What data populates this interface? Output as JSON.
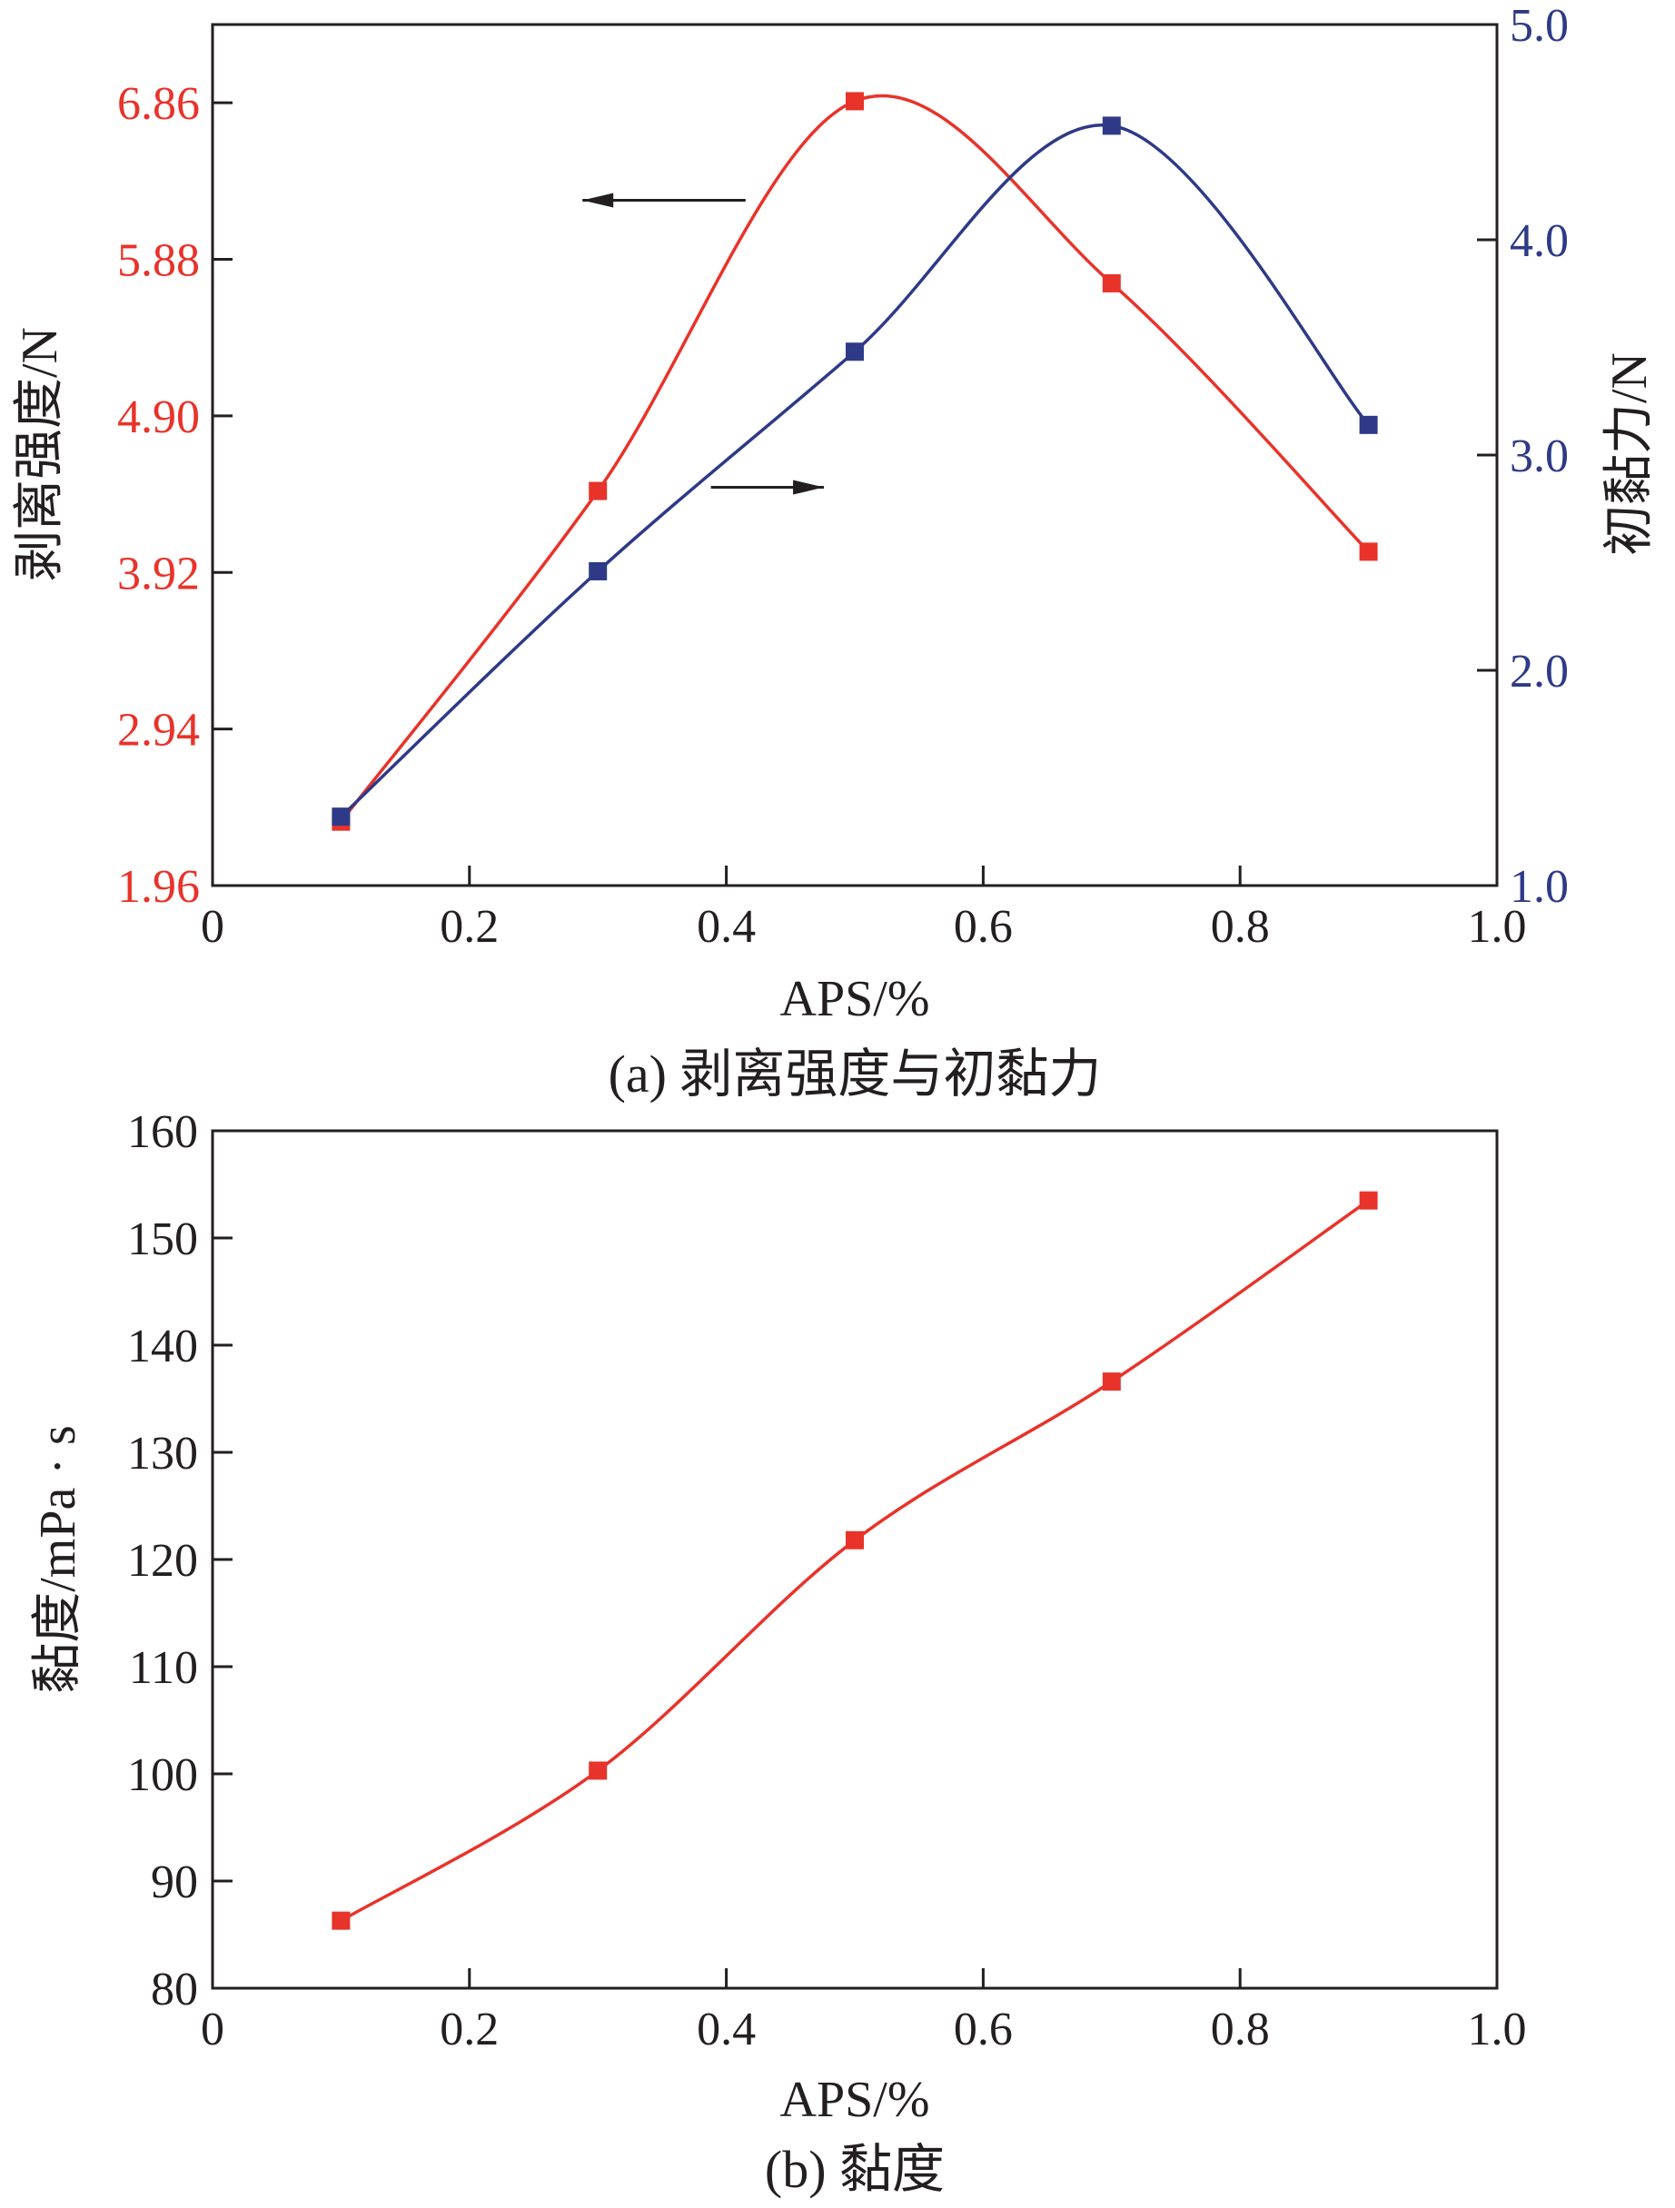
{
  "chart_data": [
    {
      "type": "line",
      "caption": "(a) 剥离强度与初黏力",
      "xlabel": "APS/%",
      "ylabel_left": "剥离强度/N",
      "ylabel_right": "初黏力/N",
      "xlim": [
        0,
        1.0
      ],
      "xticks": [
        0,
        0.2,
        0.4,
        0.6,
        0.8,
        1.0
      ],
      "xtick_labels": [
        "0",
        "0.2",
        "0.4",
        "0.6",
        "0.8",
        "1.0"
      ],
      "ylim_left": [
        1.96,
        7.35
      ],
      "yticks_left": [
        1.96,
        2.94,
        3.92,
        4.9,
        5.88,
        6.86
      ],
      "ytick_labels_left": [
        "1.96",
        "2.94",
        "3.92",
        "4.90",
        "5.88",
        "6.86"
      ],
      "ylim_right": [
        1.0,
        5.0
      ],
      "yticks_right": [
        1.0,
        2.0,
        3.0,
        4.0,
        5.0
      ],
      "ytick_labels_right": [
        "1.0",
        "2.0",
        "3.0",
        "4.0",
        "5.0"
      ],
      "colors": {
        "left": "#e8332a",
        "right": "#2e3a87",
        "arrow": "#231f20"
      },
      "series": [
        {
          "axis": "left",
          "x": [
            0.1,
            0.3,
            0.5,
            0.7,
            0.9
          ],
          "values": [
            2.36,
            4.43,
            6.87,
            5.73,
            4.05
          ]
        },
        {
          "axis": "right",
          "x": [
            0.1,
            0.3,
            0.5,
            0.7,
            0.9
          ],
          "values": [
            1.32,
            2.46,
            3.48,
            4.53,
            3.14
          ]
        }
      ]
    },
    {
      "type": "line",
      "caption": "(b) 黏度",
      "xlabel": "APS/%",
      "ylabel": "黏度/mPa · s",
      "xlim": [
        0,
        1.0
      ],
      "xticks": [
        0,
        0.2,
        0.4,
        0.6,
        0.8,
        1.0
      ],
      "xtick_labels": [
        "0",
        "0.2",
        "0.4",
        "0.6",
        "0.8",
        "1.0"
      ],
      "ylim": [
        80,
        160
      ],
      "yticks": [
        80,
        90,
        100,
        110,
        120,
        130,
        140,
        150,
        160
      ],
      "ytick_labels": [
        "80",
        "90",
        "100",
        "110",
        "120",
        "130",
        "140",
        "150",
        "160"
      ],
      "colors": {
        "series": "#e8332a"
      },
      "series": [
        {
          "x": [
            0.1,
            0.3,
            0.5,
            0.7,
            0.9
          ],
          "values": [
            86.3,
            100.3,
            121.8,
            136.6,
            153.5
          ]
        }
      ]
    }
  ]
}
